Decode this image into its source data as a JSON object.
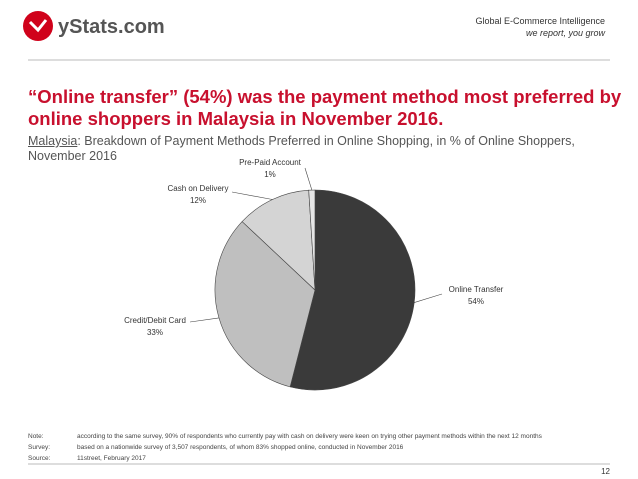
{
  "header": {
    "logo": "yStats.com",
    "tagline": "Global E-Commerce Intelligence",
    "slogan": "we report, you grow"
  },
  "title": "“Online transfer” (54%) was the payment method most preferred by online shoppers in Malaysia in November 2016.",
  "subtitle": {
    "country": "Malaysia",
    "text": ": Breakdown of Payment Methods Preferred in Online Shopping, in % of Online Shoppers, November 2016"
  },
  "chart_data": {
    "type": "pie",
    "categories": [
      "Online Transfer",
      "Credit/Debit Card",
      "Cash on Delivery",
      "Pre-Paid Account"
    ],
    "values": [
      54,
      33,
      12,
      1
    ],
    "value_labels": [
      "54%",
      "33%",
      "12%",
      "1%"
    ],
    "colors": [
      "#3a3a3a",
      "#bfbfbf",
      "#d4d4d4",
      "#e6e6e6"
    ]
  },
  "notes": [
    [
      "Note:",
      "according to the same survey, 90% of respondents who currently pay with cash on delivery were keen on trying other payment methods within the next 12 months"
    ],
    [
      "Survey:",
      "based on a nationwide survey of 3,507 respondents, of whom 83% shopped online, conducted in November 2016"
    ],
    [
      "Source:",
      "11street, February 2017"
    ]
  ],
  "page_number": "12"
}
